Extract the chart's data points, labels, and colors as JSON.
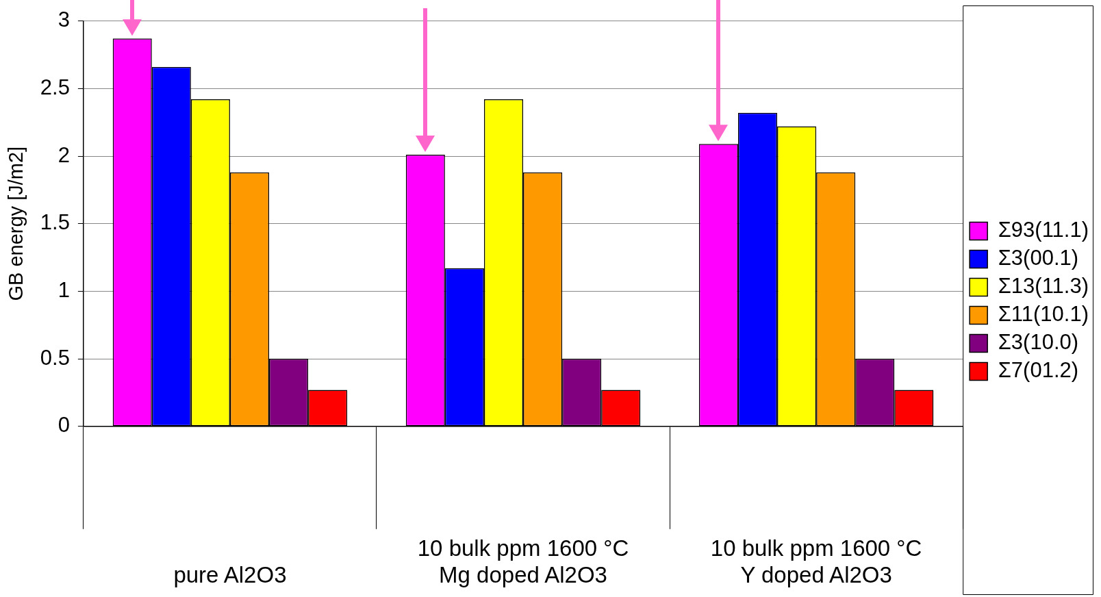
{
  "chart_data": {
    "type": "bar",
    "ylabel": "GB energy [J/m2]",
    "categories": [
      "pure Al2O3",
      "10 bulk ppm 1600 °C\nMg doped Al2O3",
      "10 bulk ppm 1600 °C\nY doped Al2O3"
    ],
    "series": [
      {
        "name": "Σ93(11.1)",
        "color": "#ff00ff",
        "values": [
          2.87,
          2.01,
          2.09
        ]
      },
      {
        "name": "Σ3(00.1)",
        "color": "#0000ff",
        "values": [
          2.66,
          1.17,
          2.32
        ]
      },
      {
        "name": "Σ13(11.3)",
        "color": "#ffff00",
        "values": [
          2.42,
          2.42,
          2.22
        ]
      },
      {
        "name": "Σ11(10.1)",
        "color": "#ff9900",
        "values": [
          1.88,
          1.88,
          1.88
        ]
      },
      {
        "name": "Σ3(10.0)",
        "color": "#800080",
        "values": [
          0.5,
          0.5,
          0.5
        ]
      },
      {
        "name": "Σ7(01.2)",
        "color": "#ff0000",
        "values": [
          0.27,
          0.27,
          0.27
        ]
      }
    ],
    "ylim": [
      0,
      3
    ],
    "yticks": [
      0,
      0.5,
      1,
      1.5,
      2,
      2.5,
      3
    ],
    "grid": "y",
    "legend": "right"
  }
}
